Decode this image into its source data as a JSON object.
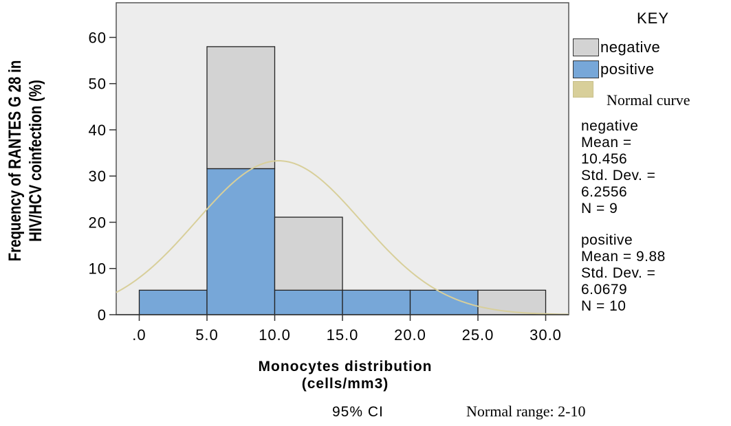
{
  "legend": {
    "title": "KEY",
    "items": [
      {
        "label": "negative",
        "color": "#d3d3d3"
      },
      {
        "label": "positive",
        "color": "#77a7d8"
      }
    ],
    "curve": {
      "label": "Normal curve",
      "color": "#d8cf9a"
    }
  },
  "stats": {
    "negative": {
      "group": "negative",
      "mean_label": "Mean =",
      "mean": "10.456",
      "sd_label": "Std. Dev. =",
      "sd": "6.2556",
      "n": "N = 9"
    },
    "positive": {
      "group": "positive",
      "mean": "Mean = 9.88",
      "sd_label": "Std. Dev. =",
      "sd": "6.0679",
      "n": "N = 10"
    }
  },
  "footer": {
    "ci": "95% CI",
    "normal_range": "Normal range: 2-10"
  },
  "chart_data": {
    "type": "bar",
    "stacked": true,
    "title": "",
    "xlabel": "Monocytes distribution (cells/mm3)",
    "xlabel_lines": [
      "Monocytes distribution",
      "(cells/mm3)"
    ],
    "ylabel": "Frequency of RANTES G 28 in HIV/HCV coinfection (%)",
    "ylabel_lines": [
      "Frequency of RANTES G 28 in",
      "HIV/HCV coinfection (%)"
    ],
    "x_ticks": [
      ".0",
      "5.0",
      "10.0",
      "15.0",
      "20.0",
      "25.0",
      "30.0"
    ],
    "x_tick_values": [
      0,
      5,
      10,
      15,
      20,
      25,
      30
    ],
    "y_ticks": [
      "0",
      "10",
      "20",
      "30",
      "40",
      "50",
      "60"
    ],
    "y_tick_values": [
      0,
      10,
      20,
      30,
      40,
      50,
      60
    ],
    "xlim": [
      -1.7,
      31.7
    ],
    "ylim": [
      0,
      67.5
    ],
    "bins": [
      [
        0,
        5
      ],
      [
        5,
        10
      ],
      [
        10,
        15
      ],
      [
        15,
        20
      ],
      [
        20,
        25
      ],
      [
        25,
        30
      ]
    ],
    "series": [
      {
        "name": "positive",
        "color": "#77a7d8",
        "values": [
          5.3,
          31.6,
          5.3,
          5.3,
          5.3,
          0
        ]
      },
      {
        "name": "negative",
        "color": "#d3d3d3",
        "values": [
          0,
          26.4,
          15.8,
          0,
          0,
          5.3
        ]
      }
    ],
    "curve": {
      "name": "Normal curve",
      "color": "#d8cf9a",
      "mean": 10.3,
      "sd": 6.1,
      "peak": 33.3
    },
    "background": "#ededed",
    "grid": false
  }
}
